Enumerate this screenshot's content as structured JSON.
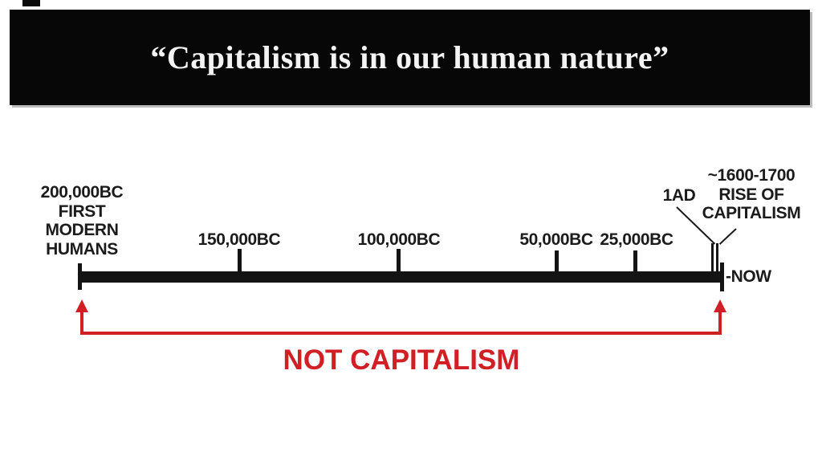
{
  "banner": {
    "quote": "“Capitalism is in our human nature”"
  },
  "timeline": {
    "origin_label": {
      "lines": [
        "200,000BC",
        "FIRST",
        "MODERN",
        "HUMANS"
      ]
    },
    "ticks": [
      {
        "label": "150,000BC"
      },
      {
        "label": "100,000BC"
      },
      {
        "label": "50,000BC"
      },
      {
        "label": "25,000BC"
      }
    ],
    "ad1_label": "1AD",
    "rise_label": {
      "lines": [
        "~1600-1700",
        "RISE OF",
        "CAPITALISM"
      ]
    },
    "now_label": "-NOW"
  },
  "bracket": {
    "label": "NOT CAPITALISM"
  },
  "colors": {
    "accent_red": "#d02026",
    "timeline_black": "#141414",
    "banner_background": "#070707",
    "banner_text": "#f3f3f3"
  }
}
